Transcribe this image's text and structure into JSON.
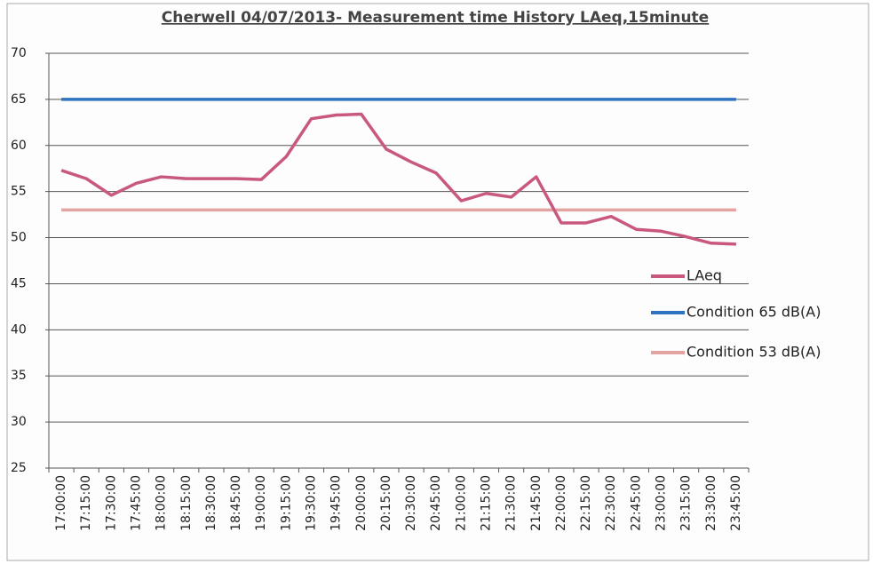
{
  "chart_data": {
    "type": "line",
    "title": "Cherwell 04/07/2013- Measurement time History  LAeq,15minute",
    "categories": [
      "17:00:00",
      "17:15:00",
      "17:30:00",
      "17:45:00",
      "18:00:00",
      "18:15:00",
      "18:30:00",
      "18:45:00",
      "19:00:00",
      "19:15:00",
      "19:30:00",
      "19:45:00",
      "20:00:00",
      "20:15:00",
      "20:30:00",
      "20:45:00",
      "21:00:00",
      "21:15:00",
      "21:30:00",
      "21:45:00",
      "22:00:00",
      "22:15:00",
      "22:30:00",
      "22:45:00",
      "23:00:00",
      "23:15:00",
      "23:30:00",
      "23:45:00"
    ],
    "series": [
      {
        "name": "LAeq",
        "color": "#c9587f",
        "values": [
          57.3,
          56.4,
          54.6,
          55.9,
          56.6,
          56.4,
          56.4,
          56.4,
          56.3,
          58.8,
          62.9,
          63.3,
          63.4,
          59.6,
          58.2,
          57.0,
          54.0,
          54.8,
          54.4,
          56.6,
          51.6,
          51.6,
          52.3,
          50.9,
          50.7,
          50.1,
          49.4,
          49.3
        ]
      },
      {
        "name": "Condition 65 dB(A)",
        "color": "#2f74c0",
        "values": [
          65,
          65,
          65,
          65,
          65,
          65,
          65,
          65,
          65,
          65,
          65,
          65,
          65,
          65,
          65,
          65,
          65,
          65,
          65,
          65,
          65,
          65,
          65,
          65,
          65,
          65,
          65,
          65
        ]
      },
      {
        "name": "Condition 53 dB(A)",
        "color": "#e3a3a0",
        "values": [
          53,
          53,
          53,
          53,
          53,
          53,
          53,
          53,
          53,
          53,
          53,
          53,
          53,
          53,
          53,
          53,
          53,
          53,
          53,
          53,
          53,
          53,
          53,
          53,
          53,
          53,
          53,
          53
        ]
      }
    ],
    "ylim": [
      25,
      70
    ],
    "yticks": [
      25,
      30,
      35,
      40,
      45,
      50,
      55,
      60,
      65,
      70
    ],
    "grid": true,
    "legend": "right"
  }
}
